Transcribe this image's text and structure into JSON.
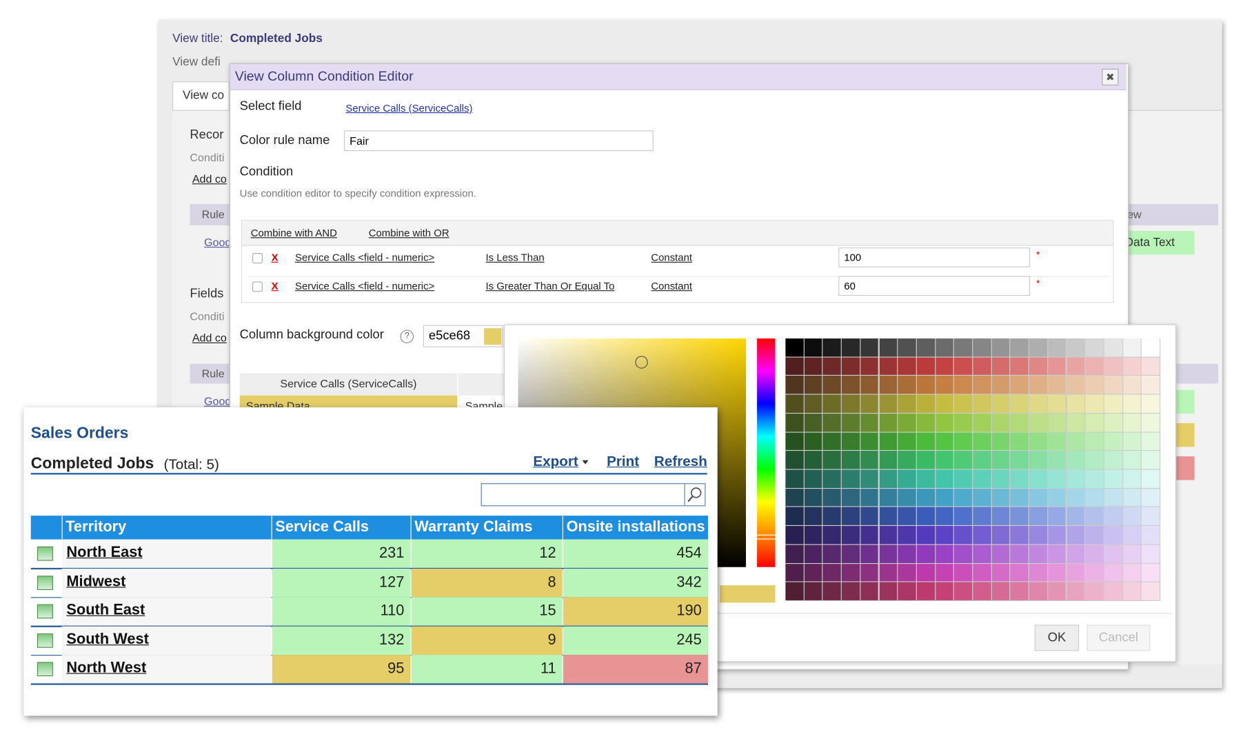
{
  "background": {
    "view_title_label": "View title:",
    "view_title": "Completed Jobs",
    "view_description": "View defi",
    "tab": "View co",
    "section1": {
      "title": "Recor",
      "hint": "Conditi",
      "add_link": "Add co",
      "rule_header": "Rule",
      "rule_link": "Good"
    },
    "section2": {
      "title": "Fields",
      "hint": "Conditi",
      "add_link": "Add co",
      "rule_header": "Rule",
      "rule_link": "Good"
    },
    "right_header": "iew",
    "right_cell": "Data Text"
  },
  "dialog": {
    "title": "View Column Condition Editor",
    "select_field_label": "Select field",
    "select_field_value": "Service Calls (ServiceCalls)",
    "color_rule_label": "Color rule name",
    "color_rule_value": "Fair",
    "condition_label": "Condition",
    "condition_hint": "Use condition editor to specify condition expression.",
    "combine_and": "Combine with AND",
    "combine_or": "Combine with OR",
    "conditions": [
      {
        "remove": "X",
        "field": "Service Calls <field - numeric>",
        "operator": "Is Less Than",
        "operand_type": "Constant",
        "value": 100,
        "required": "*"
      },
      {
        "remove": "X",
        "field": "Service Calls <field - numeric>",
        "operator": "Is Greater Than Or Equal To",
        "operand_type": "Constant",
        "value": 60,
        "required": "*"
      }
    ],
    "bg_color_label": "Column background color",
    "help": "?",
    "bg_color_value": "e5ce68",
    "sample_header": "Service Calls (ServiceCalls)",
    "sample_data": "Sample Data",
    "sample_other": "Sample"
  },
  "color_picker": {
    "ok": "OK",
    "cancel": "Cancel"
  },
  "sales": {
    "title": "Sales Orders",
    "heading": "Completed Jobs",
    "total": "(Total: 5)",
    "links": [
      "Export",
      "Print",
      "Refresh"
    ],
    "table": {
      "columns": [
        "Territory",
        "Service Calls",
        "Warranty Claims",
        "Onsite installations"
      ],
      "rows": [
        {
          "name": "North East",
          "values": [
            231,
            12,
            454
          ],
          "colors": [
            "#b9f5b9",
            "#b9f5b9",
            "#b9f5b9"
          ]
        },
        {
          "name": "Midwest",
          "values": [
            127,
            8,
            342
          ],
          "colors": [
            "#b9f5b9",
            "#e5ce68",
            "#b9f5b9"
          ]
        },
        {
          "name": "South East",
          "values": [
            110,
            15,
            190
          ],
          "colors": [
            "#b9f5b9",
            "#b9f5b9",
            "#e5ce68"
          ]
        },
        {
          "name": "South West",
          "values": [
            132,
            9,
            245
          ],
          "colors": [
            "#b9f5b9",
            "#e5ce68",
            "#b9f5b9"
          ]
        },
        {
          "name": "North West",
          "values": [
            95,
            11,
            87
          ],
          "colors": [
            "#e5ce68",
            "#b9f5b9",
            "#e99494"
          ]
        }
      ]
    }
  }
}
